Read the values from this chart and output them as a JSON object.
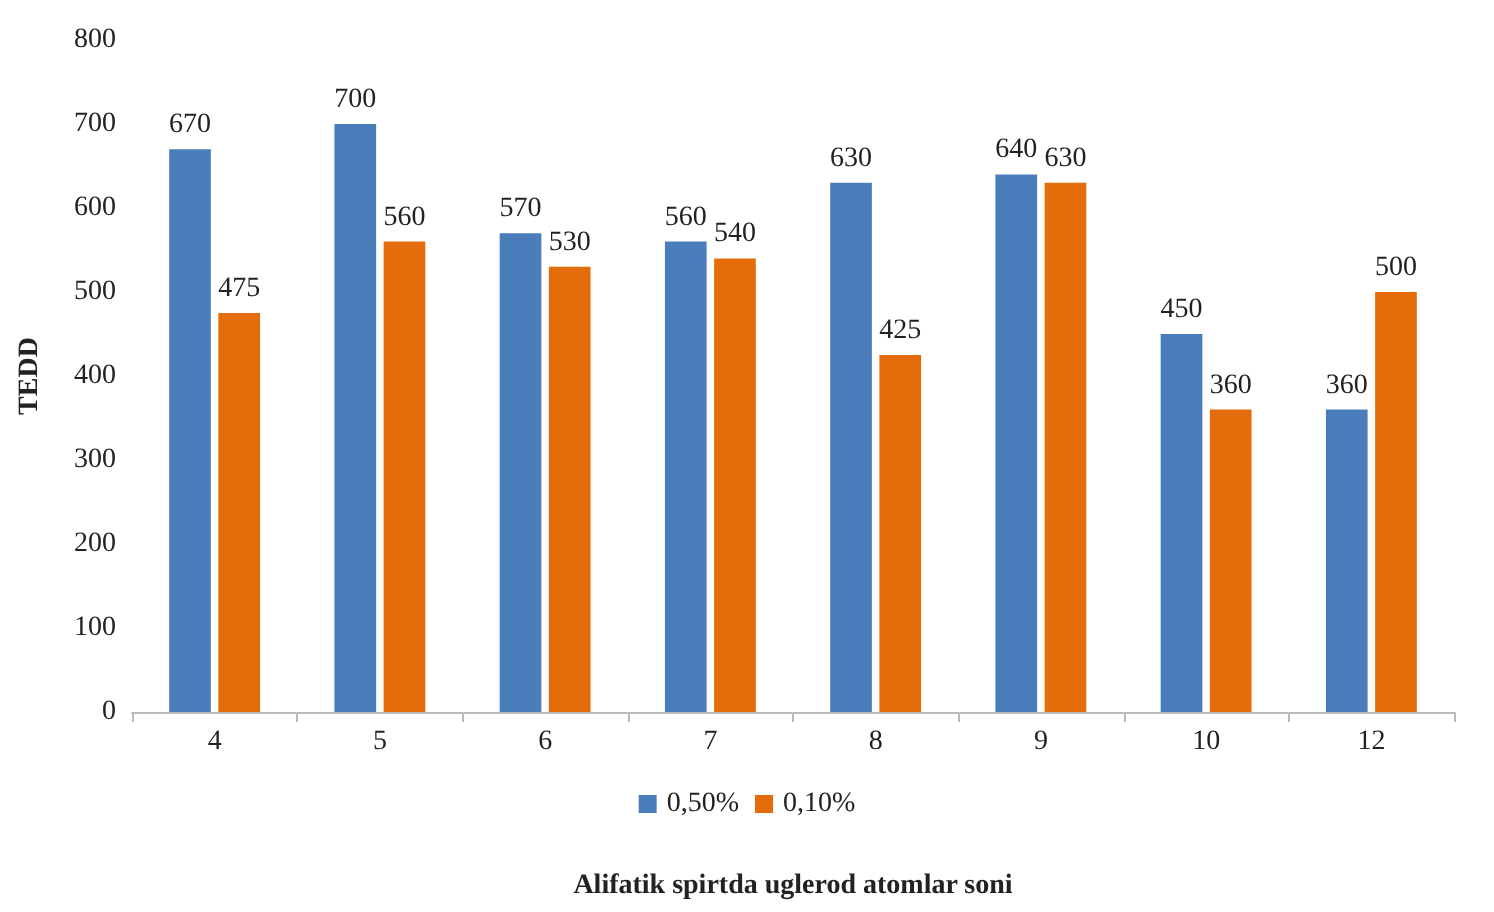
{
  "chart_data": {
    "type": "bar",
    "xlabel": "Alifatik spirtda uglerod atomlar soni",
    "ylabel": "TEDD",
    "categories": [
      "4",
      "5",
      "6",
      "7",
      "8",
      "9",
      "10",
      "12"
    ],
    "series": [
      {
        "name": "0,50%",
        "color": "#4a7ebb",
        "values": [
          670,
          700,
          570,
          560,
          630,
          640,
          450,
          360
        ]
      },
      {
        "name": "0,10%",
        "color": "#e46c0a",
        "values": [
          475,
          560,
          530,
          540,
          425,
          630,
          360,
          500
        ]
      }
    ],
    "ylim": [
      0,
      800
    ],
    "yticks": [
      0,
      100,
      200,
      300,
      400,
      500,
      600,
      700,
      800
    ],
    "grid": false,
    "legend": "bottom",
    "data_labels": true
  }
}
